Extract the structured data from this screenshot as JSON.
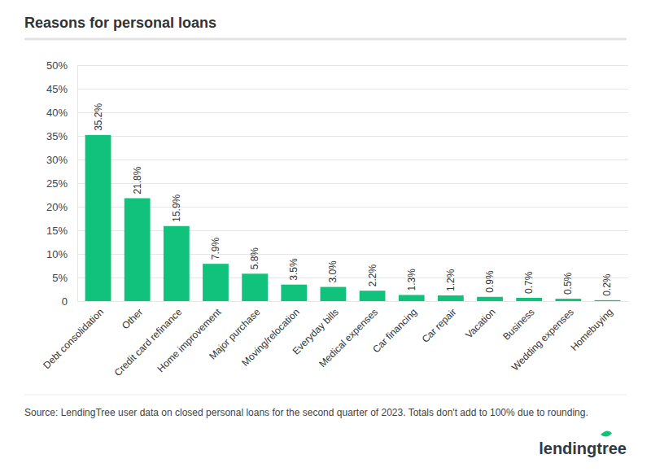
{
  "chart_data": {
    "type": "bar",
    "title": "Reasons for personal loans",
    "categories": [
      "Debt consolidation",
      "Other",
      "Credit card refinance",
      "Home improvement",
      "Major purchase",
      "Moving/relocation",
      "Everyday bills",
      "Medical expenses",
      "Car financing",
      "Car repair",
      "Vacation",
      "Business",
      "Wedding expenses",
      "Homebuying"
    ],
    "values": [
      35.2,
      21.8,
      15.9,
      7.9,
      5.8,
      3.5,
      3.0,
      2.2,
      1.3,
      1.2,
      0.9,
      0.7,
      0.5,
      0.2
    ],
    "value_labels": [
      "35.2%",
      "21.8%",
      "15.9%",
      "7.9%",
      "5.8%",
      "3.5%",
      "3.0%",
      "2.2%",
      "1.3%",
      "1.2%",
      "0.9%",
      "0.7%",
      "0.5%",
      "0.2%"
    ],
    "data_labels": true,
    "color": "#10c27b",
    "ylim": [
      0,
      50
    ],
    "yticks": [
      0,
      {
        "value": 5,
        "label": "5%"
      },
      {
        "value": 10,
        "label": "10%"
      },
      {
        "value": 15,
        "label": "15%"
      },
      {
        "value": 20,
        "label": "20%"
      },
      {
        "value": 25,
        "label": "25%"
      },
      {
        "value": 30,
        "label": "30%"
      },
      {
        "value": 35,
        "label": "35%"
      },
      {
        "value": 40,
        "label": "40%"
      },
      {
        "value": 45,
        "label": "45%"
      },
      {
        "value": 50,
        "label": "50%"
      }
    ],
    "grid": true,
    "source": "Source: LendingTree user data on closed personal loans for the second quarter of 2023. Totals don't add to 100% due to rounding.",
    "logo": "lendingtree"
  }
}
